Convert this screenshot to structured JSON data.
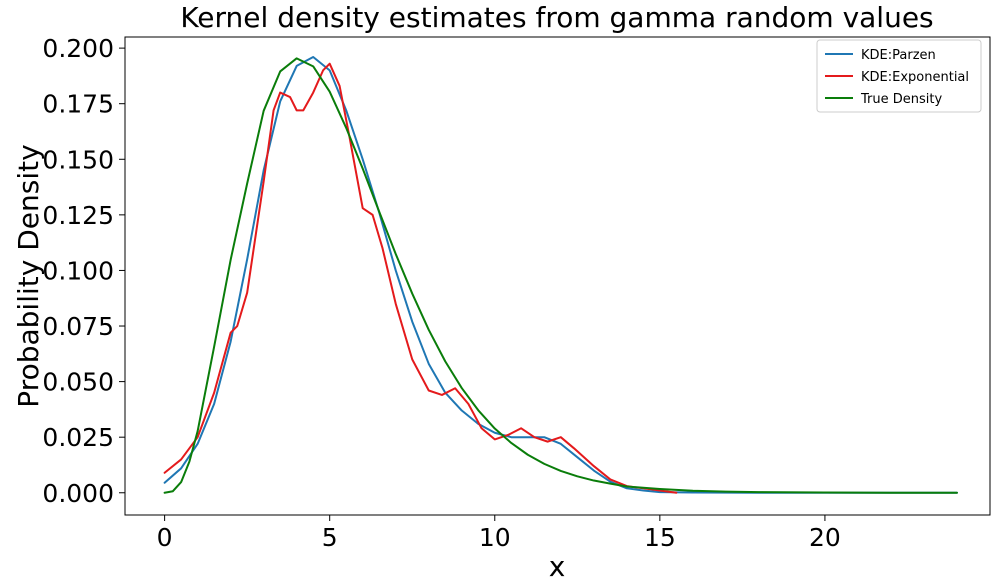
{
  "chart_data": {
    "type": "line",
    "title": "Kernel density estimates from gamma random values",
    "xlabel": "x",
    "ylabel": "Probability Density",
    "xlim": [
      -1.2,
      25.0
    ],
    "ylim": [
      -0.01,
      0.205
    ],
    "x_ticks": [
      0,
      5,
      10,
      15,
      20
    ],
    "x_tick_labels": [
      "0",
      "5",
      "10",
      "15",
      "20"
    ],
    "y_ticks": [
      0.0,
      0.025,
      0.05,
      0.075,
      0.1,
      0.125,
      0.15,
      0.175,
      0.2
    ],
    "y_tick_labels": [
      "0.000",
      "0.025",
      "0.050",
      "0.075",
      "0.100",
      "0.125",
      "0.150",
      "0.175",
      "0.200"
    ],
    "grid": false,
    "legend_position": "top-right",
    "series": [
      {
        "name": "KDE:Parzen",
        "color": "#1f77b4",
        "x": [
          0,
          0.5,
          1.0,
          1.5,
          2.0,
          2.5,
          3.0,
          3.5,
          4.0,
          4.5,
          5.0,
          5.5,
          6.0,
          6.5,
          7.0,
          7.5,
          8.0,
          8.5,
          9.0,
          9.5,
          10.0,
          10.5,
          11.0,
          11.5,
          12.0,
          12.5,
          13.0,
          13.5,
          14.0,
          14.5,
          15.0,
          16.0,
          18.0,
          20.0,
          22.0,
          24.0
        ],
        "y": [
          0.0045,
          0.011,
          0.022,
          0.04,
          0.068,
          0.105,
          0.145,
          0.176,
          0.192,
          0.196,
          0.19,
          0.172,
          0.15,
          0.126,
          0.1,
          0.077,
          0.058,
          0.045,
          0.037,
          0.031,
          0.027,
          0.025,
          0.025,
          0.025,
          0.022,
          0.016,
          0.01,
          0.005,
          0.002,
          0.001,
          0.0003,
          0.0001,
          0.0,
          0.0,
          0.0,
          0.0
        ]
      },
      {
        "name": "KDE:Exponential",
        "color": "#e41a1c",
        "x": [
          0,
          0.5,
          1.0,
          1.5,
          2.0,
          2.2,
          2.5,
          3.0,
          3.3,
          3.5,
          3.8,
          4.0,
          4.2,
          4.5,
          4.8,
          5.0,
          5.3,
          5.6,
          6.0,
          6.3,
          6.6,
          7.0,
          7.5,
          8.0,
          8.4,
          8.8,
          9.2,
          9.6,
          10.0,
          10.4,
          10.8,
          11.2,
          11.6,
          12.0,
          12.4,
          13.0,
          13.5,
          14.0,
          14.5,
          15.0,
          15.5
        ],
        "y": [
          0.009,
          0.015,
          0.025,
          0.045,
          0.072,
          0.075,
          0.09,
          0.14,
          0.172,
          0.18,
          0.178,
          0.172,
          0.172,
          0.18,
          0.19,
          0.193,
          0.183,
          0.16,
          0.128,
          0.125,
          0.11,
          0.085,
          0.06,
          0.046,
          0.044,
          0.047,
          0.04,
          0.029,
          0.024,
          0.026,
          0.029,
          0.025,
          0.023,
          0.025,
          0.02,
          0.012,
          0.006,
          0.003,
          0.002,
          0.001,
          0.0
        ]
      },
      {
        "name": "True Density",
        "color": "#0a7d0a",
        "x": [
          0,
          0.25,
          0.5,
          0.75,
          1.0,
          1.5,
          2.0,
          2.5,
          3.0,
          3.5,
          4.0,
          4.5,
          5.0,
          5.5,
          6.0,
          6.5,
          7.0,
          7.5,
          8.0,
          8.5,
          9.0,
          9.5,
          10.0,
          10.5,
          11.0,
          11.5,
          12.0,
          12.5,
          13.0,
          13.5,
          14.0,
          15.0,
          16.0,
          17.0,
          18.0,
          20.0,
          22.0,
          24.0
        ],
        "y": [
          0.0,
          0.0007,
          0.0048,
          0.014,
          0.0277,
          0.0657,
          0.1048,
          0.1391,
          0.1718,
          0.1895,
          0.1954,
          0.1918,
          0.1804,
          0.1641,
          0.1458,
          0.1264,
          0.1074,
          0.0896,
          0.0733,
          0.0591,
          0.0471,
          0.0371,
          0.0289,
          0.0224,
          0.0171,
          0.013,
          0.0098,
          0.0074,
          0.0055,
          0.0041,
          0.0028,
          0.0017,
          0.0009,
          0.0005,
          0.0003,
          0.0001,
          0.0,
          0.0
        ]
      }
    ]
  }
}
